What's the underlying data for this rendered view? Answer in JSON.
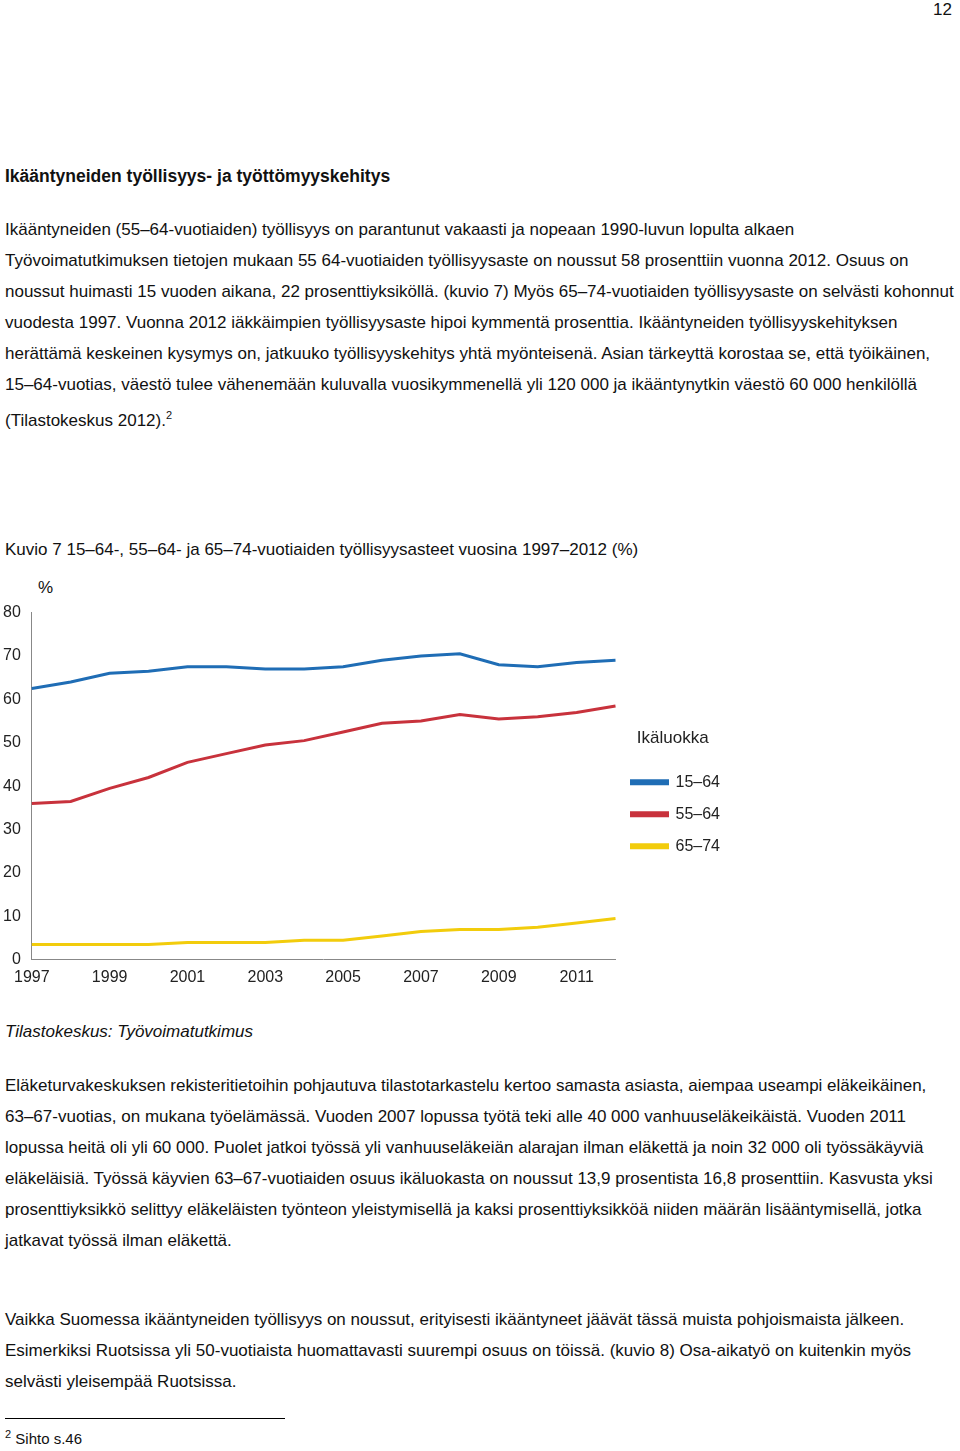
{
  "document": {
    "page_number": "12",
    "heading": "Ikääntyneiden työllisyys- ja työttömyyskehitys",
    "paragraph_1": {
      "text": "Ikääntyneiden (55–64-vuotiaiden) työllisyys on parantunut vakaasti ja nopeaan 1990-luvun lopulta alkaen Työvoimatutkimuksen tietojen mukaan 55 64-vuotiaiden työllisyysaste on noussut 58 prosenttiin vuonna 2012. Osuus on noussut huimasti 15 vuoden aikana, 22 prosenttiyksiköllä. (kuvio 7) Myös 65–74-vuotiaiden työllisyysaste on selvästi kohonnut vuodesta 1997. Vuonna 2012 iäkkäimpien työllisyysaste hipoi kymmentä prosenttia. Ikääntyneiden työllisyyskehityksen herättämä keskeinen kysymys on, jatkuuko työllisyyskehitys yhtä myönteisenä. Asian tärkeyttä korostaa se, että työikäinen, 15–64-vuotias, väestö tulee vähenemään kuluvalla vuosikymmenellä yli 120 000 ja ikääntynytkin väestö 60 000 henkilöllä (Tilastokeskus 2012).",
      "footnote_ref": "2"
    },
    "figure_caption": "Kuvio 7 15–64-, 55–64- ja 65–74-vuotiaiden työllisyysasteet vuosina 1997–2012 (%)",
    "figure_source": "Tilastokeskus: Työvoimatutkimus",
    "paragraph_2": "Eläketurvakeskuksen rekisteritietoihin pohjautuva tilastotarkastelu kertoo samasta asiasta, aiempaa useampi eläkeikäinen, 63–67-vuotias, on mukana työelämässä. Vuoden 2007 lopussa työtä teki alle 40 000 vanhuuseläkeikäistä. Vuoden 2011 lopussa heitä oli yli 60 000. Puolet jatkoi työssä yli vanhuuseläkeiän alarajan ilman eläkettä ja noin 32 000 oli työssäkäyviä eläkeläisiä. Työssä käyvien 63–67-vuotiaiden osuus ikäluokasta on noussut 13,9 prosentista 16,8 prosenttiin. Kasvusta yksi prosenttiyksikkö selittyy eläkeläisten työnteon yleistymisellä ja kaksi prosenttiyksikköä niiden määrän lisääntymisellä, jotka jatkavat työssä ilman eläkettä.",
    "paragraph_3": "Vaikka Suomessa ikääntyneiden työllisyys on noussut, erityisesti ikääntyneet jäävät tässä muista pohjoismaista jälkeen. Esimerkiksi Ruotsissa yli 50-vuotiaista huomattavasti suurempi osuus on töissä. (kuvio 8) Osa-aikatyö on kuitenkin myös selvästi yleisempää Ruotsissa.",
    "footnote": {
      "mark": "2",
      "text": "Sihto s.46"
    }
  },
  "chart_data": {
    "type": "line",
    "y_label": "%",
    "legend_title": "Ikäluokka",
    "legend": "right",
    "grid": false,
    "categories": [
      "1997",
      null,
      "1999",
      null,
      "2001",
      null,
      "2003",
      null,
      "2005",
      null,
      "2007",
      null,
      "2009",
      null,
      "2011",
      null
    ],
    "series": [
      {
        "name": "15–64",
        "color": "#1f6db5",
        "values": [
          62.5,
          64,
          66,
          66.5,
          67.5,
          67.5,
          67,
          67,
          67.5,
          69,
          70,
          70.5,
          68,
          67.5,
          68.5,
          69
        ]
      },
      {
        "name": "55–64",
        "color": "#c8323c",
        "values": [
          36,
          36.5,
          39.5,
          42,
          45.5,
          47.5,
          49.5,
          50.5,
          52.5,
          54.5,
          55,
          56.5,
          55.5,
          56,
          57,
          58.5
        ]
      },
      {
        "name": "65–74",
        "color": "#f2cc0c",
        "values": [
          3.5,
          3.5,
          3.5,
          3.5,
          4,
          4,
          4,
          4.5,
          4.5,
          5.5,
          6.5,
          7,
          7,
          7.5,
          8.5,
          9.5
        ]
      }
    ],
    "ylim": [
      0,
      80
    ],
    "yticks": [
      0,
      10,
      20,
      30,
      40,
      50,
      60,
      70,
      80
    ]
  }
}
